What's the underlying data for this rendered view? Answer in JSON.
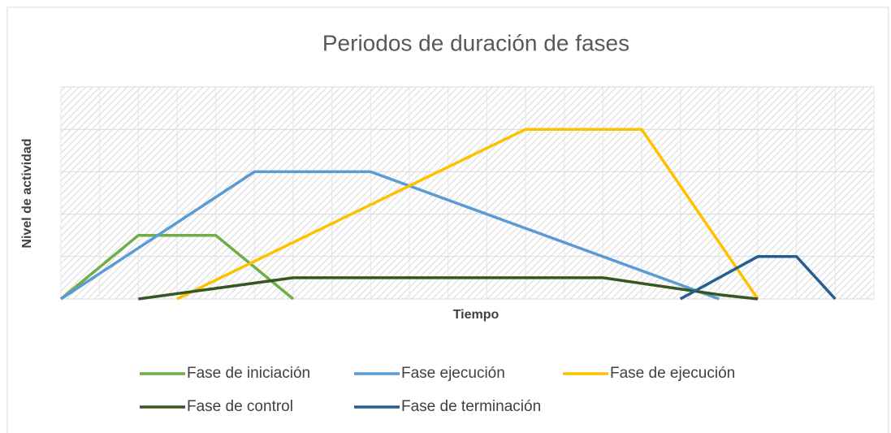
{
  "chart_data": {
    "type": "line",
    "title": "Periodos de duración de fases",
    "xlabel": "Tiempo",
    "ylabel": "Nivel de actividad",
    "xlim": [
      0,
      21
    ],
    "xticks": [
      0,
      1,
      2,
      3,
      4,
      5,
      6,
      7,
      8,
      9,
      10,
      11,
      12,
      13,
      14,
      15,
      16,
      17,
      18,
      19,
      20,
      21
    ],
    "ylim": [
      0,
      5
    ],
    "yticks": [
      0,
      1,
      2,
      3,
      4,
      5
    ],
    "grid": true,
    "series": [
      {
        "name": "Fase de iniciación",
        "color": "#70ad47",
        "x": [
          0,
          2,
          4,
          6
        ],
        "values": [
          0,
          1.5,
          1.5,
          0
        ]
      },
      {
        "name": "Fase ejecución",
        "color": "#5b9bd5",
        "x": [
          0,
          5,
          8,
          17
        ],
        "values": [
          0,
          3,
          3,
          0
        ]
      },
      {
        "name": "Fase de ejecución",
        "color": "#ffc000",
        "x": [
          3,
          12,
          15,
          18
        ],
        "values": [
          0,
          4,
          4,
          0
        ]
      },
      {
        "name": "Fase de control",
        "color": "#375623",
        "x": [
          2,
          6,
          14,
          17,
          18
        ],
        "values": [
          0,
          0.5,
          0.5,
          0.1,
          0
        ]
      },
      {
        "name": "Fase de terminación",
        "color": "#255e91",
        "x": [
          16,
          18,
          19,
          20
        ],
        "values": [
          0,
          1,
          1,
          0
        ]
      }
    ]
  }
}
